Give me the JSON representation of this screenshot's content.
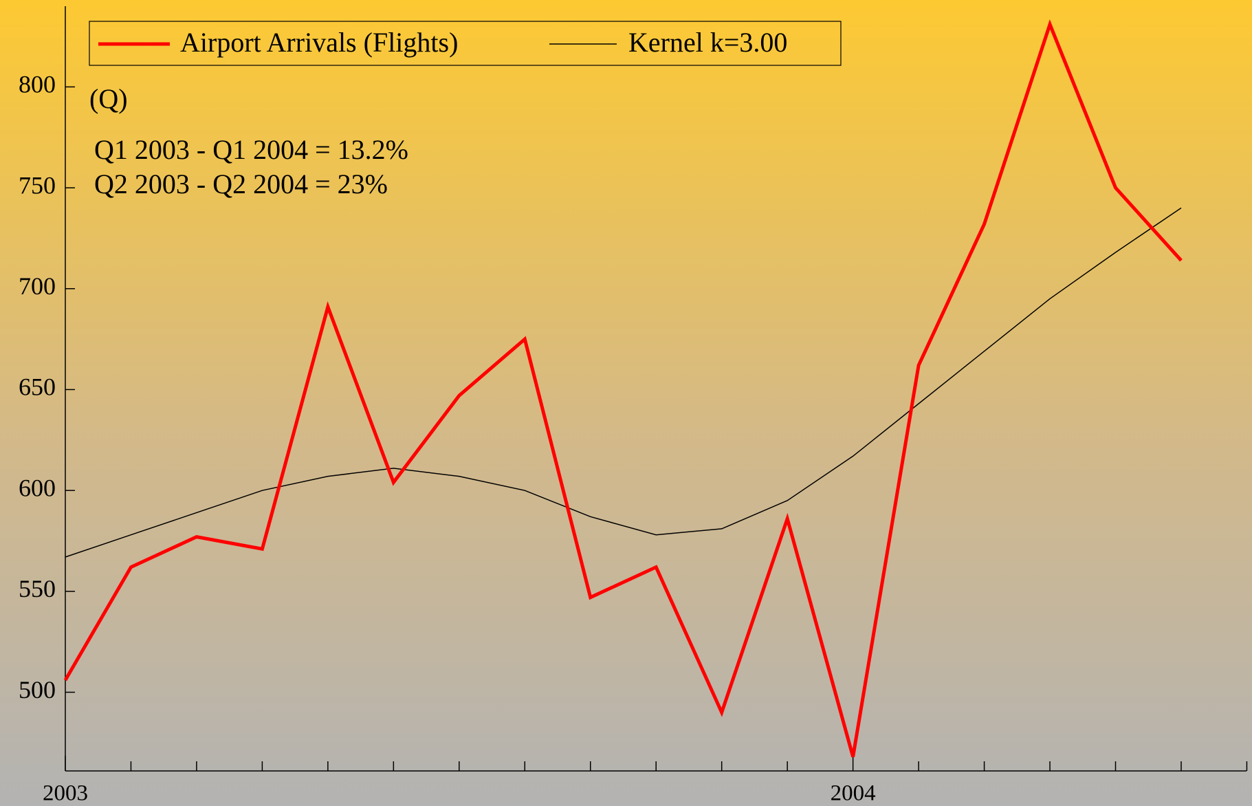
{
  "chart_data": {
    "type": "line",
    "categories": [
      "2003",
      null,
      null,
      null,
      null,
      null,
      null,
      null,
      null,
      null,
      null,
      null,
      "2004",
      null,
      null,
      null,
      null,
      null
    ],
    "series": [
      {
        "name": "Airport Arrivals (Flights)",
        "color": "#ff0000",
        "values": [
          506,
          562,
          577,
          571,
          691,
          604,
          647,
          675,
          547,
          562,
          490,
          586,
          468,
          662,
          732,
          831,
          750,
          714
        ]
      },
      {
        "name": "Kernel k=3.00",
        "color": "#000000",
        "values": [
          567,
          578,
          589,
          600,
          607,
          611,
          607,
          600,
          587,
          578,
          581,
          595,
          617,
          643,
          669,
          695,
          718,
          740
        ]
      }
    ],
    "annotations": [
      "(Q)",
      "Q1 2003 - Q1 2004 = 13.2%",
      "Q2 2003 - Q2 2004 = 23%"
    ],
    "ylim": [
      461,
      840
    ],
    "yticks": [
      500,
      550,
      600,
      650,
      700,
      750,
      800
    ],
    "legend": "top-left"
  }
}
